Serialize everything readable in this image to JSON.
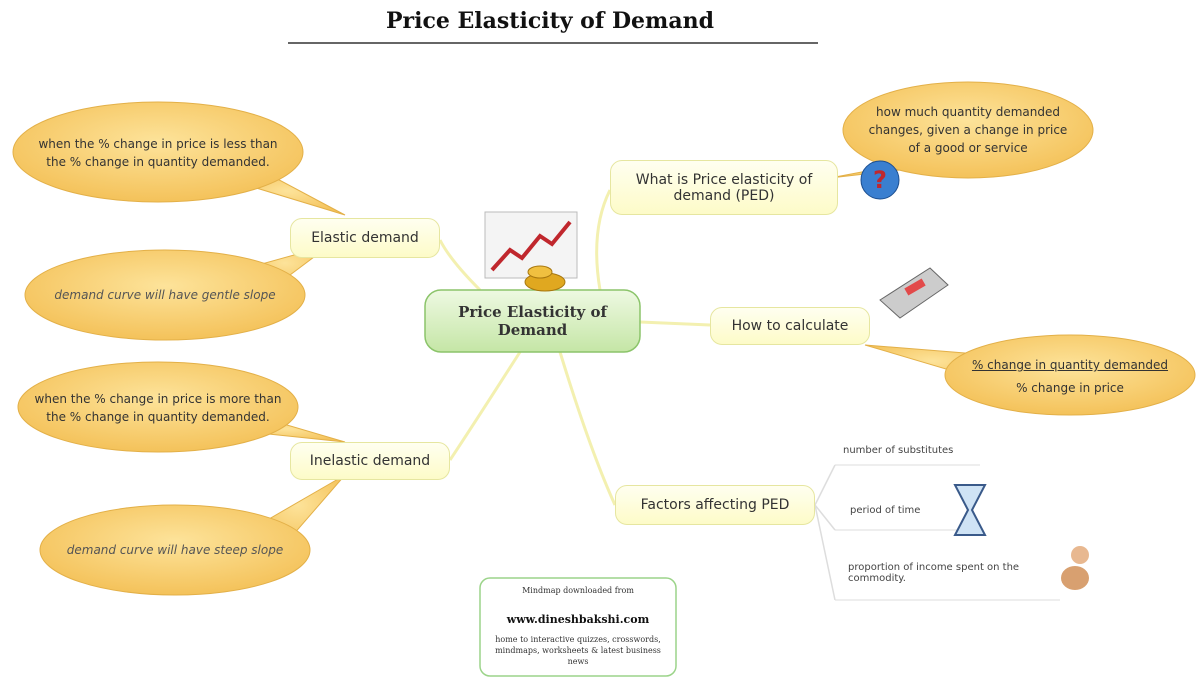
{
  "title": "Price Elasticity of Demand",
  "central": "Price Elasticity of Demand",
  "branches": [
    {
      "label": "What is Price elasticity of demand (PED)",
      "callouts": [
        "how much quantity demanded changes, given a change in price of a good or service"
      ]
    },
    {
      "label": "Elastic demand",
      "callouts": [
        "when the % change in price is less than the % change in quantity demanded.",
        "demand curve will have gentle slope"
      ]
    },
    {
      "label": "How to calculate",
      "formula": {
        "numerator": "% change in quantity demanded",
        "denominator": "% change in price"
      }
    },
    {
      "label": "Inelastic demand",
      "callouts": [
        "when the % change in price is more than the % change in quantity demanded.",
        "demand curve will have steep slope"
      ]
    },
    {
      "label": "Factors affecting PED",
      "items": [
        "number of substitutes",
        "period of time",
        "proportion of income spent on the commodity."
      ]
    }
  ],
  "footer": {
    "intro": "Mindmap downloaded from",
    "site": "www.dineshbakshi.com",
    "description": "home to interactive quizzes, crosswords, mindmaps, worksheets & latest business news"
  }
}
